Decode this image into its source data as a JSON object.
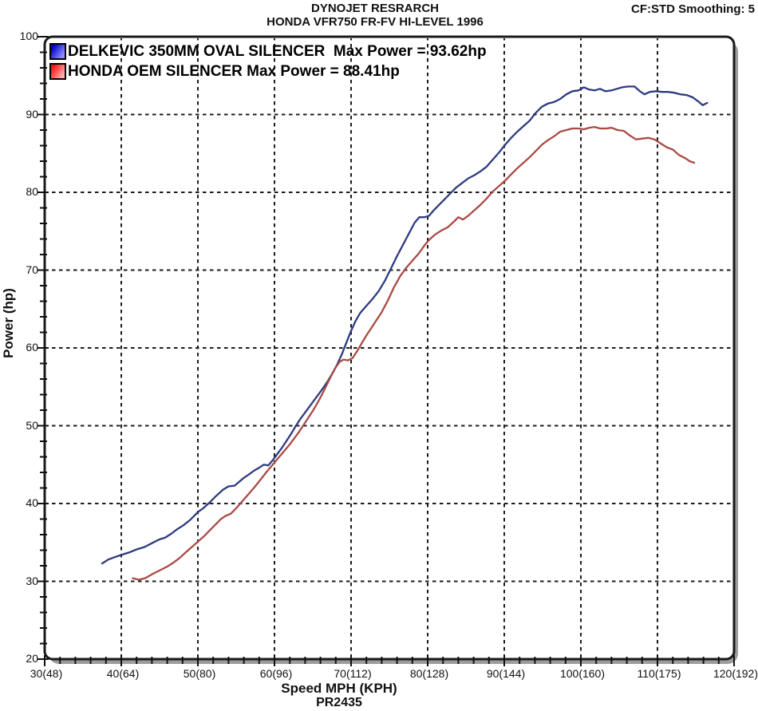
{
  "header": {
    "title_line1": "DYNOJET RESRARCH",
    "title_line2": "HONDA VFR750 FR-FV HI-LEVEL 1996",
    "top_right": "CF:STD Smoothing: 5"
  },
  "colors": {
    "frame": "#1a1a1a",
    "shadow": "#9c9c9c",
    "grid": "#1c1c1c",
    "background": "#ffffff",
    "blue_series": "#2e3a80",
    "red_series": "#aa4a44"
  },
  "chart_data": {
    "type": "line",
    "title": "DYNOJET RESRARCH",
    "subtitle": "HONDA VFR750 FR-FV HI-LEVEL 1996",
    "xlabel": "Speed MPH (KPH)",
    "xlabel_sub": "PR2435",
    "ylabel": "Power (hp)",
    "grid": "dashed-at-major-ticks",
    "legend_position": "top-left-inside",
    "x_axis": {
      "min": 30,
      "max": 120,
      "major_step": 10,
      "minor_step": 2,
      "tick_values": [
        30,
        40,
        50,
        60,
        70,
        80,
        90,
        100,
        110,
        120
      ],
      "tick_labels": [
        "30(48)",
        "40(64)",
        "50(80)",
        "60(96)",
        "70(112)",
        "80(128)",
        "90(144)",
        "100(160)",
        "110(175)",
        "120(192)"
      ]
    },
    "y_axis": {
      "min": 20,
      "max": 100,
      "major_step": 10,
      "minor_step": 2,
      "tick_values": [
        100,
        90,
        80,
        70,
        60,
        50,
        40,
        30,
        20
      ],
      "tick_labels": [
        "100",
        "90",
        "80",
        "70",
        "60",
        "50",
        "40",
        "30",
        "20"
      ]
    },
    "series": [
      {
        "name": "DELKEVIC 350MM OVAL SILENCER",
        "legend_label": "DELKEVIC 350MM OVAL SILENCER  Max Power = 93.62hp",
        "max_power_hp": 93.62,
        "color": "#2e3a80",
        "swatch_gradient": [
          "#0000c8",
          "#9090ff"
        ],
        "points": [
          [
            37.5,
            32.3
          ],
          [
            38.3,
            32.8
          ],
          [
            39.1,
            33.1
          ],
          [
            40,
            33.4
          ],
          [
            41,
            33.7
          ],
          [
            42,
            34.1
          ],
          [
            43,
            34.4
          ],
          [
            44,
            34.9
          ],
          [
            45,
            35.4
          ],
          [
            45.7,
            35.6
          ],
          [
            46.5,
            36.1
          ],
          [
            47.3,
            36.7
          ],
          [
            48.1,
            37.2
          ],
          [
            49,
            37.9
          ],
          [
            50,
            38.9
          ],
          [
            50.7,
            39.4
          ],
          [
            51.5,
            40.1
          ],
          [
            52.3,
            40.9
          ],
          [
            53.3,
            41.8
          ],
          [
            54,
            42.2
          ],
          [
            54.8,
            42.3
          ],
          [
            55.4,
            42.8
          ],
          [
            56,
            43.3
          ],
          [
            56.6,
            43.7
          ],
          [
            57.3,
            44.2
          ],
          [
            58,
            44.6
          ],
          [
            58.6,
            45.0
          ],
          [
            59.2,
            44.9
          ],
          [
            59.8,
            45.6
          ],
          [
            60.4,
            46.4
          ],
          [
            61,
            47.2
          ],
          [
            61.6,
            48.1
          ],
          [
            62.2,
            49.0
          ],
          [
            62.8,
            50.0
          ],
          [
            63.4,
            50.9
          ],
          [
            64,
            51.7
          ],
          [
            64.6,
            52.5
          ],
          [
            65.2,
            53.3
          ],
          [
            65.8,
            54.1
          ],
          [
            66.4,
            54.9
          ],
          [
            67,
            55.8
          ],
          [
            67.6,
            56.8
          ],
          [
            68.2,
            57.9
          ],
          [
            68.8,
            59.2
          ],
          [
            69.4,
            60.7
          ],
          [
            70,
            62.2
          ],
          [
            70.6,
            63.5
          ],
          [
            71.2,
            64.5
          ],
          [
            72,
            65.4
          ],
          [
            72.8,
            66.3
          ],
          [
            73.6,
            67.3
          ],
          [
            74.4,
            68.6
          ],
          [
            75.2,
            70.2
          ],
          [
            76,
            71.8
          ],
          [
            76.8,
            73.3
          ],
          [
            77.6,
            74.8
          ],
          [
            78.3,
            76.1
          ],
          [
            78.9,
            76.8
          ],
          [
            79.6,
            76.8
          ],
          [
            80.2,
            77.0
          ],
          [
            80.8,
            77.7
          ],
          [
            81.5,
            78.4
          ],
          [
            82.2,
            79.1
          ],
          [
            82.9,
            79.8
          ],
          [
            83.7,
            80.6
          ],
          [
            84.5,
            81.2
          ],
          [
            85.3,
            81.8
          ],
          [
            86.1,
            82.2
          ],
          [
            86.9,
            82.7
          ],
          [
            87.7,
            83.3
          ],
          [
            88.5,
            84.2
          ],
          [
            89.3,
            85.1
          ],
          [
            90.1,
            86.1
          ],
          [
            90.9,
            87.0
          ],
          [
            91.7,
            87.8
          ],
          [
            92.5,
            88.5
          ],
          [
            93.3,
            89.2
          ],
          [
            94.1,
            90.2
          ],
          [
            94.9,
            91.0
          ],
          [
            95.7,
            91.4
          ],
          [
            96.5,
            91.6
          ],
          [
            97.3,
            92.0
          ],
          [
            98.1,
            92.6
          ],
          [
            98.9,
            93.0
          ],
          [
            99.7,
            93.1
          ],
          [
            100.4,
            93.5
          ],
          [
            101.1,
            93.2
          ],
          [
            101.8,
            93.1
          ],
          [
            102.5,
            93.3
          ],
          [
            103.2,
            93.0
          ],
          [
            104,
            93.1
          ],
          [
            104.7,
            93.3
          ],
          [
            105.4,
            93.5
          ],
          [
            106.2,
            93.6
          ],
          [
            107,
            93.6
          ],
          [
            107.7,
            93.0
          ],
          [
            108.3,
            92.6
          ],
          [
            109,
            92.9
          ],
          [
            109.8,
            93.0
          ],
          [
            110.6,
            92.9
          ],
          [
            111.4,
            92.9
          ],
          [
            112.2,
            92.8
          ],
          [
            113,
            92.6
          ],
          [
            113.8,
            92.5
          ],
          [
            114.6,
            92.2
          ],
          [
            115.3,
            91.7
          ],
          [
            115.9,
            91.2
          ],
          [
            116.5,
            91.5
          ]
        ]
      },
      {
        "name": "HONDA OEM SILENCER",
        "legend_label": "HONDA OEM SILENCER Max Power = 88.41hp",
        "max_power_hp": 88.41,
        "color": "#aa4a44",
        "swatch_gradient": [
          "#ff1515",
          "#ffb0b0"
        ],
        "points": [
          [
            41.5,
            30.4
          ],
          [
            42.3,
            30.2
          ],
          [
            43.1,
            30.4
          ],
          [
            44,
            30.9
          ],
          [
            45,
            31.4
          ],
          [
            46,
            31.9
          ],
          [
            46.8,
            32.4
          ],
          [
            47.6,
            33.0
          ],
          [
            48.4,
            33.7
          ],
          [
            49.2,
            34.4
          ],
          [
            50,
            35.1
          ],
          [
            50.8,
            35.8
          ],
          [
            51.6,
            36.6
          ],
          [
            52.4,
            37.4
          ],
          [
            53,
            38.0
          ],
          [
            53.6,
            38.4
          ],
          [
            54.3,
            38.7
          ],
          [
            55,
            39.4
          ],
          [
            55.8,
            40.3
          ],
          [
            56.6,
            41.2
          ],
          [
            57.4,
            42.1
          ],
          [
            58.2,
            43.1
          ],
          [
            59,
            44.1
          ],
          [
            59.6,
            44.8
          ],
          [
            60.2,
            45.5
          ],
          [
            60.8,
            46.2
          ],
          [
            61.4,
            46.9
          ],
          [
            62,
            47.6
          ],
          [
            62.6,
            48.4
          ],
          [
            63.2,
            49.2
          ],
          [
            63.8,
            50.1
          ],
          [
            64.4,
            51.0
          ],
          [
            65,
            51.9
          ],
          [
            65.6,
            52.9
          ],
          [
            66.2,
            54.0
          ],
          [
            66.8,
            55.2
          ],
          [
            67.4,
            56.4
          ],
          [
            68,
            57.5
          ],
          [
            68.5,
            58.2
          ],
          [
            69,
            58.5
          ],
          [
            69.6,
            58.4
          ],
          [
            70.2,
            58.7
          ],
          [
            70.8,
            59.6
          ],
          [
            71.4,
            60.6
          ],
          [
            72,
            61.6
          ],
          [
            72.6,
            62.5
          ],
          [
            73.2,
            63.4
          ],
          [
            74,
            64.6
          ],
          [
            74.8,
            66.1
          ],
          [
            75.6,
            67.8
          ],
          [
            76.4,
            69.2
          ],
          [
            77.2,
            70.3
          ],
          [
            78,
            71.2
          ],
          [
            78.8,
            72.1
          ],
          [
            79.6,
            73.2
          ],
          [
            80.3,
            74.0
          ],
          [
            81,
            74.6
          ],
          [
            81.8,
            75.1
          ],
          [
            82.6,
            75.5
          ],
          [
            83.4,
            76.2
          ],
          [
            84,
            76.8
          ],
          [
            84.6,
            76.5
          ],
          [
            85.3,
            77.0
          ],
          [
            86.1,
            77.7
          ],
          [
            86.9,
            78.4
          ],
          [
            87.7,
            79.2
          ],
          [
            88.5,
            80.1
          ],
          [
            89.3,
            80.8
          ],
          [
            90.1,
            81.5
          ],
          [
            90.9,
            82.3
          ],
          [
            91.7,
            83.1
          ],
          [
            92.5,
            83.8
          ],
          [
            93.3,
            84.5
          ],
          [
            94.1,
            85.3
          ],
          [
            94.9,
            86.1
          ],
          [
            95.7,
            86.7
          ],
          [
            96.5,
            87.2
          ],
          [
            97.3,
            87.8
          ],
          [
            98.1,
            88.0
          ],
          [
            98.9,
            88.2
          ],
          [
            99.7,
            88.2
          ],
          [
            100.4,
            88.1
          ],
          [
            101.1,
            88.3
          ],
          [
            101.8,
            88.4
          ],
          [
            102.5,
            88.2
          ],
          [
            103.3,
            88.2
          ],
          [
            104,
            88.3
          ],
          [
            104.8,
            88.0
          ],
          [
            105.6,
            87.9
          ],
          [
            106.4,
            87.3
          ],
          [
            107.2,
            86.8
          ],
          [
            108,
            86.9
          ],
          [
            108.8,
            87.0
          ],
          [
            109.6,
            86.8
          ],
          [
            110.4,
            86.3
          ],
          [
            111.2,
            85.8
          ],
          [
            112,
            85.5
          ],
          [
            112.8,
            84.8
          ],
          [
            113.6,
            84.4
          ],
          [
            114.2,
            84.0
          ],
          [
            114.8,
            83.8
          ]
        ]
      }
    ]
  }
}
